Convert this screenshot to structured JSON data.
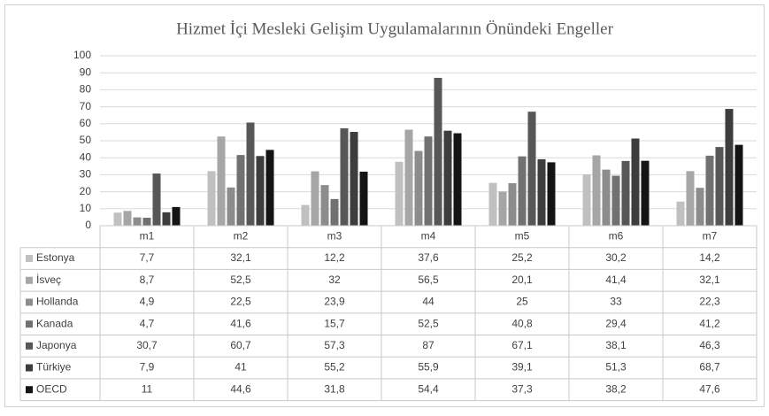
{
  "chart_data": {
    "type": "bar",
    "title": "Hizmet İçi Mesleki Gelişim Uygulamalarının Önündeki Engeller",
    "categories": [
      "m1",
      "m2",
      "m3",
      "m4",
      "m5",
      "m6",
      "m7"
    ],
    "series": [
      {
        "name": "Estonya",
        "color": "#c0c0c0",
        "values": [
          7.7,
          32.1,
          12.2,
          37.6,
          25.2,
          30.2,
          14.2
        ],
        "value_labels": [
          "7,7",
          "32,1",
          "12,2",
          "37,6",
          "25,2",
          "30,2",
          "14,2"
        ]
      },
      {
        "name": "İsveç",
        "color": "#a6a6a6",
        "values": [
          8.7,
          52.5,
          32,
          56.5,
          20.1,
          41.4,
          32.1
        ],
        "value_labels": [
          "8,7",
          "52,5",
          "32",
          "56,5",
          "20,1",
          "41,4",
          "32,1"
        ]
      },
      {
        "name": "Hollanda",
        "color": "#8c8c8c",
        "values": [
          4.9,
          22.5,
          23.9,
          44,
          25,
          33,
          22.3
        ],
        "value_labels": [
          "4,9",
          "22,5",
          "23,9",
          "44",
          "25",
          "33",
          "22,3"
        ]
      },
      {
        "name": "Kanada",
        "color": "#717171",
        "values": [
          4.7,
          41.6,
          15.7,
          52.5,
          40.8,
          29.4,
          41.2
        ],
        "value_labels": [
          "4,7",
          "41,6",
          "15,7",
          "52,5",
          "40,8",
          "29,4",
          "41,2"
        ]
      },
      {
        "name": "Japonya",
        "color": "#575757",
        "values": [
          30.7,
          60.7,
          57.3,
          87,
          67.1,
          38.1,
          46.3
        ],
        "value_labels": [
          "30,7",
          "60,7",
          "57,3",
          "87",
          "67,1",
          "38,1",
          "46,3"
        ]
      },
      {
        "name": "Türkiye",
        "color": "#3d3d3d",
        "values": [
          7.9,
          41,
          55.2,
          55.9,
          39.1,
          51.3,
          68.7
        ],
        "value_labels": [
          "7,9",
          "41",
          "55,2",
          "55,9",
          "39,1",
          "51,3",
          "68,7"
        ]
      },
      {
        "name": "OECD",
        "color": "#141414",
        "values": [
          11,
          44.6,
          31.8,
          54.4,
          37.3,
          38.2,
          47.6
        ],
        "value_labels": [
          "11",
          "44,6",
          "31,8",
          "54,4",
          "37,3",
          "38,2",
          "47,6"
        ]
      }
    ],
    "ylim": [
      0,
      100
    ],
    "yticks": [
      0,
      10,
      20,
      30,
      40,
      50,
      60,
      70,
      80,
      90,
      100
    ],
    "grid": true
  }
}
